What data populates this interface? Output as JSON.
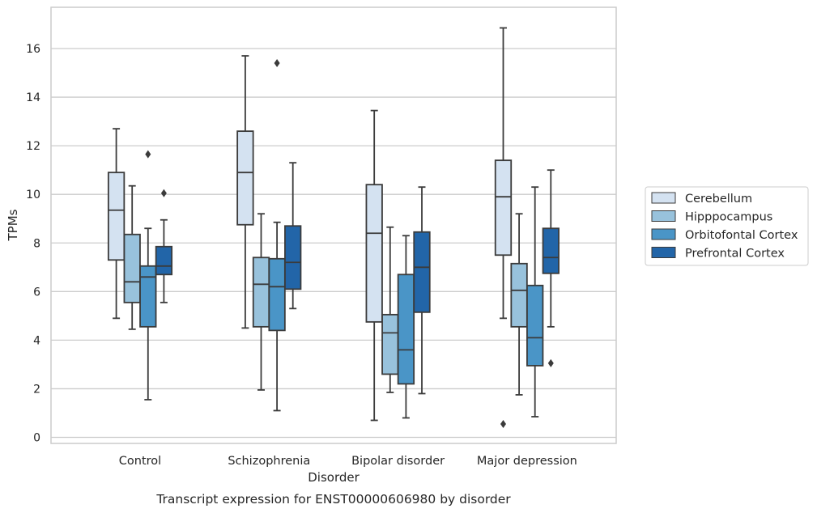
{
  "chart_data": {
    "type": "box",
    "xlabel": "Disorder",
    "ylabel": "TPMs",
    "caption": "Transcript expression for ENST00000606980 by disorder",
    "categories": [
      "Control",
      "Schizophrenia",
      "Bipolar disorder",
      "Major depression"
    ],
    "ylim": [
      -0.25,
      17.75
    ],
    "yticks": [
      0,
      2,
      4,
      6,
      8,
      10,
      12,
      14,
      16
    ],
    "grid": "horizontal",
    "legend_position": "right",
    "series": [
      {
        "name": "Cerebellum",
        "color": "#d4e2f1",
        "boxes": [
          {
            "whisker_low": 4.9,
            "q1": 7.3,
            "median": 9.35,
            "q3": 10.9,
            "whisker_high": 12.7,
            "outliers": []
          },
          {
            "whisker_low": 4.5,
            "q1": 8.75,
            "median": 10.9,
            "q3": 12.6,
            "whisker_high": 15.7,
            "outliers": []
          },
          {
            "whisker_low": 0.7,
            "q1": 4.75,
            "median": 8.4,
            "q3": 10.4,
            "whisker_high": 13.45,
            "outliers": []
          },
          {
            "whisker_low": 4.9,
            "q1": 7.5,
            "median": 9.9,
            "q3": 11.4,
            "whisker_high": 16.85,
            "outliers": [
              0.55
            ]
          }
        ]
      },
      {
        "name": "Hipppocampus",
        "color": "#98c2dc",
        "boxes": [
          {
            "whisker_low": 4.45,
            "q1": 5.55,
            "median": 6.4,
            "q3": 8.35,
            "whisker_high": 10.35,
            "outliers": []
          },
          {
            "whisker_low": 1.95,
            "q1": 4.55,
            "median": 6.3,
            "q3": 7.4,
            "whisker_high": 9.2,
            "outliers": []
          },
          {
            "whisker_low": 1.85,
            "q1": 2.6,
            "median": 4.3,
            "q3": 5.05,
            "whisker_high": 8.65,
            "outliers": []
          },
          {
            "whisker_low": 1.75,
            "q1": 4.55,
            "median": 6.05,
            "q3": 7.15,
            "whisker_high": 9.2,
            "outliers": []
          }
        ]
      },
      {
        "name": "Orbitofontal Cortex",
        "color": "#4a95c7",
        "boxes": [
          {
            "whisker_low": 1.55,
            "q1": 4.55,
            "median": 6.6,
            "q3": 7.05,
            "whisker_high": 8.6,
            "outliers": [
              11.65
            ]
          },
          {
            "whisker_low": 1.1,
            "q1": 4.4,
            "median": 6.2,
            "q3": 7.35,
            "whisker_high": 8.85,
            "outliers": [
              15.4
            ]
          },
          {
            "whisker_low": 0.8,
            "q1": 2.2,
            "median": 3.6,
            "q3": 6.7,
            "whisker_high": 8.3,
            "outliers": []
          },
          {
            "whisker_low": 0.85,
            "q1": 2.95,
            "median": 4.1,
            "q3": 6.25,
            "whisker_high": 10.3,
            "outliers": []
          }
        ]
      },
      {
        "name": "Prefrontal Cortex",
        "color": "#2265a8",
        "boxes": [
          {
            "whisker_low": 5.55,
            "q1": 6.7,
            "median": 7.05,
            "q3": 7.85,
            "whisker_high": 8.95,
            "outliers": [
              10.05
            ]
          },
          {
            "whisker_low": 5.3,
            "q1": 6.1,
            "median": 7.2,
            "q3": 8.7,
            "whisker_high": 11.3,
            "outliers": []
          },
          {
            "whisker_low": 1.8,
            "q1": 5.15,
            "median": 7.0,
            "q3": 8.45,
            "whisker_high": 10.3,
            "outliers": []
          },
          {
            "whisker_low": 4.55,
            "q1": 6.75,
            "median": 7.4,
            "q3": 8.6,
            "whisker_high": 11.0,
            "outliers": [
              3.05
            ]
          }
        ]
      }
    ]
  }
}
